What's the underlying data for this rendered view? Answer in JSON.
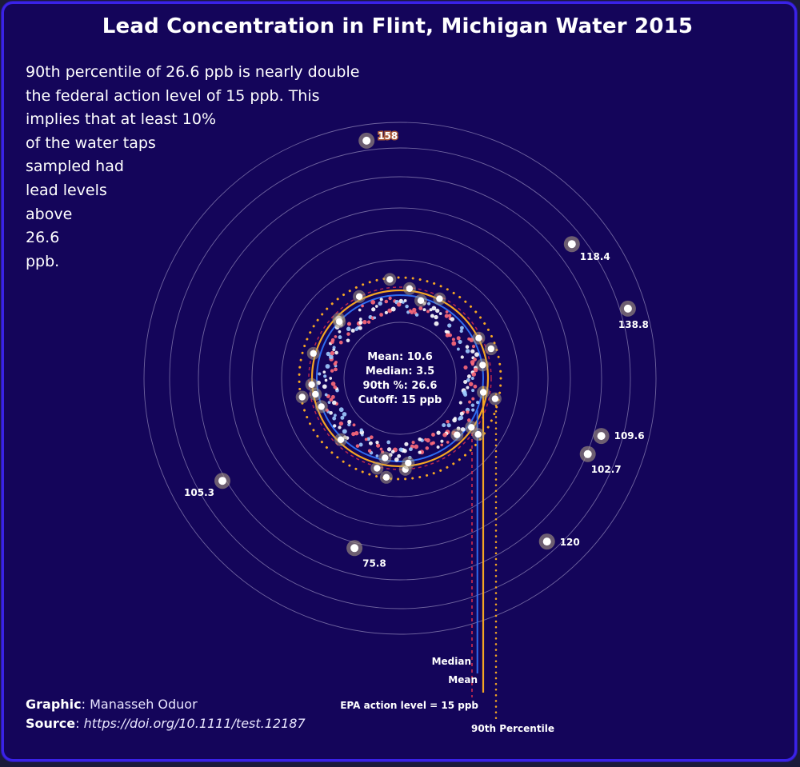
{
  "title": "Lead Concentration in Flint, Michigan Water 2015",
  "annotation_lines": [
    "90th percentile of 26.6 ppb is nearly double",
    "the federal action level of 15 ppb. This",
    "implies that at least 10%",
    "of the water taps",
    "sampled had",
    "lead levels",
    "above",
    "26.6",
    "ppb."
  ],
  "center_stats": {
    "mean": "Mean: 10.6",
    "median": "Median: 3.5",
    "p90": "90th %: 26.6",
    "cutoff": "Cutoff: 15 ppb"
  },
  "reference_lines": {
    "median_label": "Median",
    "mean_label": "Mean",
    "epa_label": "EPA action level = 15 ppb",
    "p90_label": "90th Percentile"
  },
  "credits": {
    "graphic_key": "Graphic",
    "graphic_value": ": Manasseh Oduor",
    "source_key": "Source",
    "source_value": "https://doi.org/10.1111/test.12187"
  },
  "colors": {
    "background": "#14055a",
    "border": "#3a22e8",
    "ring": "#b9b3d9",
    "mean": "#f5a623",
    "median": "#2f6cf0",
    "epa": "#e0304e",
    "p90": "#f5a623",
    "point": "#ffffff",
    "point_halo": "#a89a80"
  },
  "chart_data": {
    "type": "radial-scatter",
    "title": "Lead Concentration in Flint, Michigan Water 2015",
    "unit": "ppb",
    "mean": 10.6,
    "median": 3.5,
    "percentile_90": 26.6,
    "action_level": 15,
    "labeled_points": [
      {
        "label": "158",
        "value": 158,
        "highlight": true
      },
      {
        "label": "118.4",
        "value": 118.4
      },
      {
        "label": "138.8",
        "value": 138.8
      },
      {
        "label": "109.6",
        "value": 109.6
      },
      {
        "label": "102.7",
        "value": 102.7
      },
      {
        "label": "120",
        "value": 120
      },
      {
        "label": "75.8",
        "value": 75.8
      },
      {
        "label": "105.3",
        "value": 105.3
      }
    ],
    "value_range": [
      0,
      160
    ]
  }
}
